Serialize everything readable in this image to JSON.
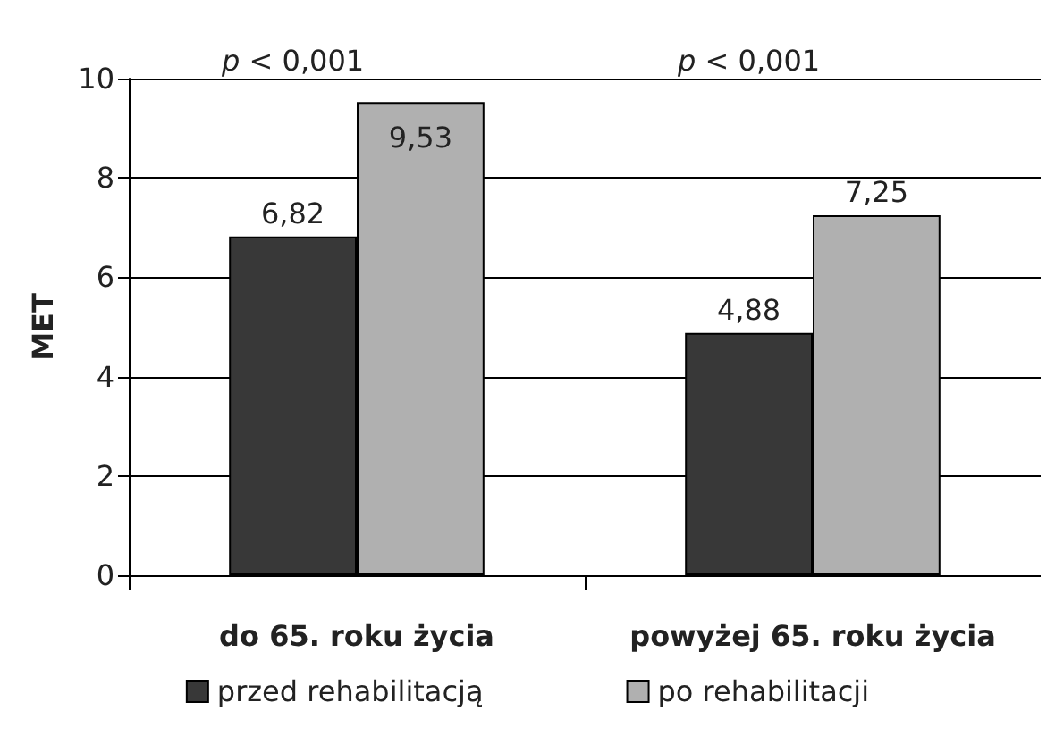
{
  "chart_data": {
    "type": "bar",
    "ylabel": "MET",
    "categories": [
      "do 65. roku życia",
      "powyżej 65. roku życia"
    ],
    "series": [
      {
        "name": "przed rehabilitacją",
        "color": "#383838",
        "values": [
          6.82,
          4.88
        ],
        "value_labels": [
          "6,82",
          "4,88"
        ]
      },
      {
        "name": "po rehabilitacji",
        "color": "#b0b0b0",
        "values": [
          9.53,
          7.25
        ],
        "value_labels": [
          "9,53",
          "7,25"
        ]
      }
    ],
    "ylim": [
      0,
      10
    ],
    "yticks": [
      0,
      2,
      4,
      6,
      8,
      10
    ],
    "grid": "y",
    "legend": "bottom",
    "annotations": [
      "p < 0,001",
      "p < 0,001"
    ]
  }
}
